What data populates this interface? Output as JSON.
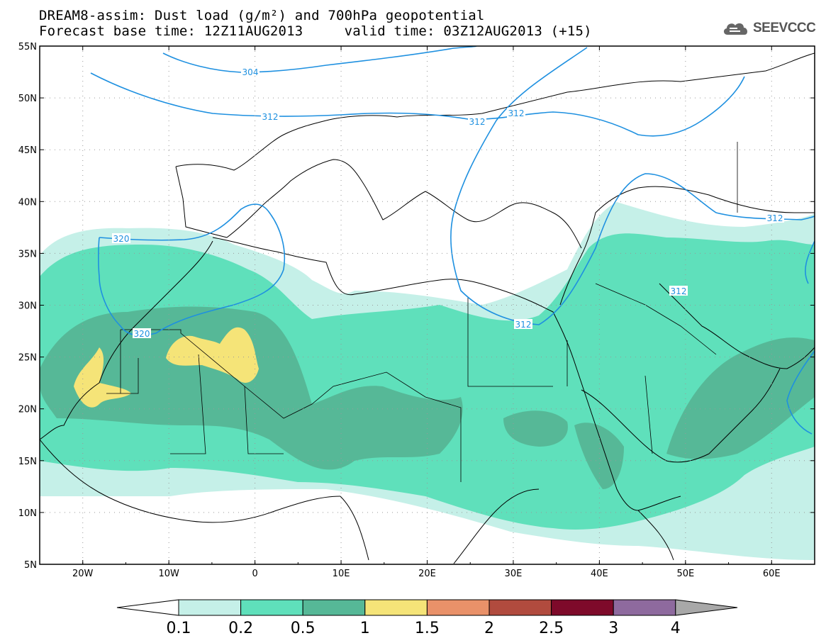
{
  "header": {
    "title_line1": "DREAM8-assim: Dust load (g/m²) and 700hPa geopotential",
    "title_line2_left": "Forecast base time: 12Z11AUG2013",
    "title_line2_right": "valid time: 03Z12AUG2013 (+15)"
  },
  "logo": {
    "text": "SEEVCCC",
    "icon": "cloud-icon"
  },
  "map": {
    "lon_range": [
      -25,
      65
    ],
    "lat_range": [
      5,
      55
    ],
    "lat_labels": [
      "55N",
      "50N",
      "45N",
      "40N",
      "35N",
      "30N",
      "25N",
      "20N",
      "15N",
      "10N",
      "5N"
    ],
    "lon_labels": [
      "20W",
      "10W",
      "0",
      "10E",
      "20E",
      "30E",
      "40E",
      "50E",
      "60E"
    ],
    "contour_labels": [
      "304",
      "312",
      "312",
      "312",
      "312",
      "320",
      "320",
      "312",
      "312"
    ],
    "contour_color": "#1e90e0"
  },
  "colorbar": {
    "ticks": [
      "0.1",
      "0.2",
      "0.5",
      "1",
      "1.5",
      "2",
      "2.5",
      "3",
      "4"
    ],
    "colors": [
      "#c5f0e8",
      "#5fe0bb",
      "#56b897",
      "#f5e478",
      "#e99169",
      "#b14b3e",
      "#7e0a2a",
      "#8e6a9e"
    ],
    "end_left": "#ffffff",
    "end_right": "#a8a8a8"
  },
  "levels": {
    "l1": "#c5f0e8",
    "l2": "#5fe0bb",
    "l3": "#56b897",
    "l4": "#f5e478"
  }
}
